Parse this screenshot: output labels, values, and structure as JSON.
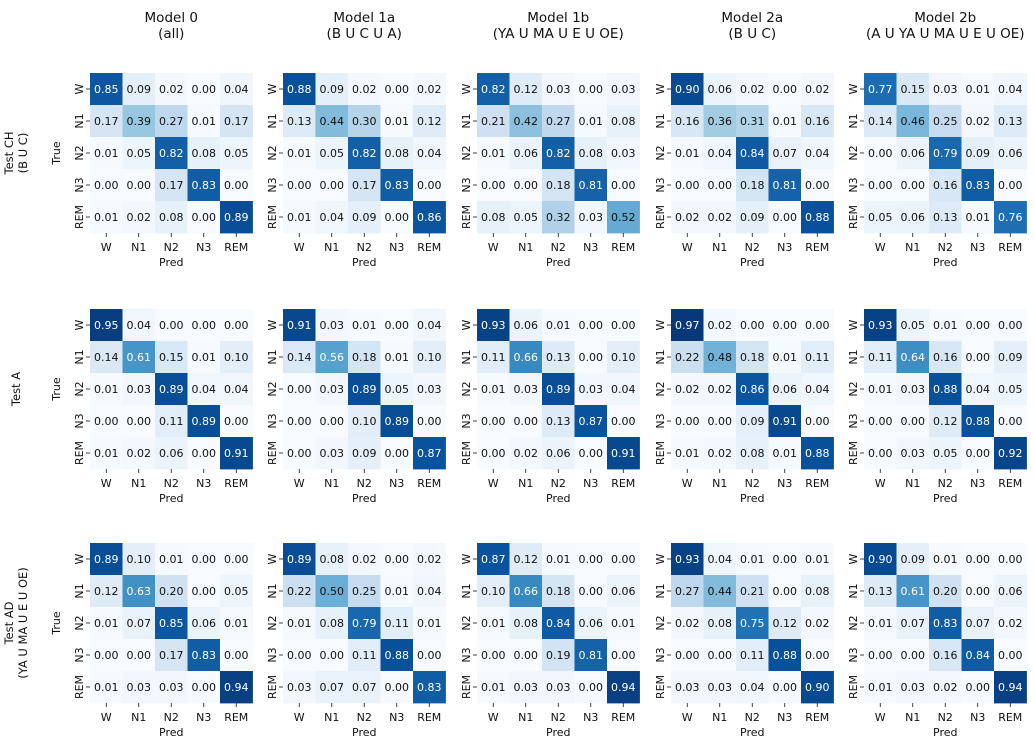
{
  "chart_data": {
    "type": "heatmap",
    "colormap": "Blues",
    "value_range": [
      0,
      1
    ],
    "labels": [
      "W",
      "N1",
      "N2",
      "N3",
      "REM"
    ],
    "xlabel": "Pred",
    "ylabel": "True",
    "columns": [
      {
        "title": "Model 0",
        "subtitle": "(all)"
      },
      {
        "title": "Model 1a",
        "subtitle": "(B U C U A)"
      },
      {
        "title": "Model 1b",
        "subtitle": "(YA U MA U E U OE)"
      },
      {
        "title": "Model 2a",
        "subtitle": "(B U C)"
      },
      {
        "title": "Model 2b",
        "subtitle": "(A U YA U MA U E U OE)"
      }
    ],
    "rows": [
      {
        "title": "Test CH",
        "subtitle": "(B U C)"
      },
      {
        "title": "Test A",
        "subtitle": ""
      },
      {
        "title": "Test AD",
        "subtitle": "(YA U MA U E U OE)"
      }
    ],
    "matrices": [
      [
        [
          [
            0.85,
            0.09,
            0.02,
            0.0,
            0.04
          ],
          [
            0.17,
            0.39,
            0.27,
            0.01,
            0.17
          ],
          [
            0.01,
            0.05,
            0.82,
            0.08,
            0.05
          ],
          [
            0.0,
            0.0,
            0.17,
            0.83,
            0.0
          ],
          [
            0.01,
            0.02,
            0.08,
            0.0,
            0.89
          ]
        ],
        [
          [
            0.88,
            0.09,
            0.02,
            0.0,
            0.02
          ],
          [
            0.13,
            0.44,
            0.3,
            0.01,
            0.12
          ],
          [
            0.01,
            0.05,
            0.82,
            0.08,
            0.04
          ],
          [
            0.0,
            0.0,
            0.17,
            0.83,
            0.0
          ],
          [
            0.01,
            0.04,
            0.09,
            0.0,
            0.86
          ]
        ],
        [
          [
            0.82,
            0.12,
            0.03,
            0.0,
            0.03
          ],
          [
            0.21,
            0.42,
            0.27,
            0.01,
            0.08
          ],
          [
            0.01,
            0.06,
            0.82,
            0.08,
            0.03
          ],
          [
            0.0,
            0.0,
            0.18,
            0.81,
            0.0
          ],
          [
            0.08,
            0.05,
            0.32,
            0.03,
            0.52
          ]
        ],
        [
          [
            0.9,
            0.06,
            0.02,
            0.0,
            0.02
          ],
          [
            0.16,
            0.36,
            0.31,
            0.01,
            0.16
          ],
          [
            0.01,
            0.04,
            0.84,
            0.07,
            0.04
          ],
          [
            0.0,
            0.0,
            0.18,
            0.81,
            0.0
          ],
          [
            0.02,
            0.02,
            0.09,
            0.0,
            0.88
          ]
        ],
        [
          [
            0.77,
            0.15,
            0.03,
            0.01,
            0.04
          ],
          [
            0.14,
            0.46,
            0.25,
            0.02,
            0.13
          ],
          [
            0.0,
            0.06,
            0.79,
            0.09,
            0.06
          ],
          [
            0.0,
            0.0,
            0.16,
            0.83,
            0.0
          ],
          [
            0.05,
            0.06,
            0.13,
            0.01,
            0.76
          ]
        ]
      ],
      [
        [
          [
            0.95,
            0.04,
            0.0,
            0.0,
            0.0
          ],
          [
            0.14,
            0.61,
            0.15,
            0.01,
            0.1
          ],
          [
            0.01,
            0.03,
            0.89,
            0.04,
            0.04
          ],
          [
            0.0,
            0.0,
            0.11,
            0.89,
            0.0
          ],
          [
            0.01,
            0.02,
            0.06,
            0.0,
            0.91
          ]
        ],
        [
          [
            0.91,
            0.03,
            0.01,
            0.0,
            0.04
          ],
          [
            0.14,
            0.56,
            0.18,
            0.01,
            0.1
          ],
          [
            0.0,
            0.03,
            0.89,
            0.05,
            0.03
          ],
          [
            0.0,
            0.0,
            0.1,
            0.89,
            0.0
          ],
          [
            0.0,
            0.03,
            0.09,
            0.0,
            0.87
          ]
        ],
        [
          [
            0.93,
            0.06,
            0.01,
            0.0,
            0.0
          ],
          [
            0.11,
            0.66,
            0.13,
            0.0,
            0.1
          ],
          [
            0.01,
            0.03,
            0.89,
            0.03,
            0.04
          ],
          [
            0.0,
            0.0,
            0.13,
            0.87,
            0.0
          ],
          [
            0.0,
            0.02,
            0.06,
            0.0,
            0.91
          ]
        ],
        [
          [
            0.97,
            0.02,
            0.0,
            0.0,
            0.0
          ],
          [
            0.22,
            0.48,
            0.18,
            0.01,
            0.11
          ],
          [
            0.02,
            0.02,
            0.86,
            0.06,
            0.04
          ],
          [
            0.0,
            0.0,
            0.09,
            0.91,
            0.0
          ],
          [
            0.01,
            0.02,
            0.08,
            0.01,
            0.88
          ]
        ],
        [
          [
            0.93,
            0.05,
            0.01,
            0.0,
            0.0
          ],
          [
            0.11,
            0.64,
            0.16,
            0.0,
            0.09
          ],
          [
            0.01,
            0.03,
            0.88,
            0.04,
            0.05
          ],
          [
            0.0,
            0.0,
            0.12,
            0.88,
            0.0
          ],
          [
            0.0,
            0.03,
            0.05,
            0.0,
            0.92
          ]
        ]
      ],
      [
        [
          [
            0.89,
            0.1,
            0.01,
            0.0,
            0.0
          ],
          [
            0.12,
            0.63,
            0.2,
            0.0,
            0.05
          ],
          [
            0.01,
            0.07,
            0.85,
            0.06,
            0.01
          ],
          [
            0.0,
            0.0,
            0.17,
            0.83,
            0.0
          ],
          [
            0.01,
            0.03,
            0.03,
            0.0,
            0.94
          ]
        ],
        [
          [
            0.89,
            0.08,
            0.02,
            0.0,
            0.02
          ],
          [
            0.22,
            0.5,
            0.25,
            0.01,
            0.04
          ],
          [
            0.01,
            0.08,
            0.79,
            0.11,
            0.01
          ],
          [
            0.0,
            0.0,
            0.11,
            0.88,
            0.0
          ],
          [
            0.03,
            0.07,
            0.07,
            0.0,
            0.83
          ]
        ],
        [
          [
            0.87,
            0.12,
            0.01,
            0.0,
            0.0
          ],
          [
            0.1,
            0.66,
            0.18,
            0.0,
            0.06
          ],
          [
            0.01,
            0.08,
            0.84,
            0.06,
            0.01
          ],
          [
            0.0,
            0.0,
            0.19,
            0.81,
            0.0
          ],
          [
            0.01,
            0.03,
            0.03,
            0.0,
            0.94
          ]
        ],
        [
          [
            0.93,
            0.04,
            0.01,
            0.0,
            0.01
          ],
          [
            0.27,
            0.44,
            0.21,
            0.0,
            0.08
          ],
          [
            0.02,
            0.08,
            0.75,
            0.12,
            0.02
          ],
          [
            0.0,
            0.0,
            0.11,
            0.88,
            0.0
          ],
          [
            0.03,
            0.03,
            0.04,
            0.0,
            0.9
          ]
        ],
        [
          [
            0.9,
            0.09,
            0.01,
            0.0,
            0.0
          ],
          [
            0.13,
            0.61,
            0.2,
            0.0,
            0.06
          ],
          [
            0.01,
            0.07,
            0.83,
            0.07,
            0.02
          ],
          [
            0.0,
            0.0,
            0.16,
            0.84,
            0.0
          ],
          [
            0.01,
            0.03,
            0.02,
            0.0,
            0.94
          ]
        ]
      ]
    ]
  }
}
